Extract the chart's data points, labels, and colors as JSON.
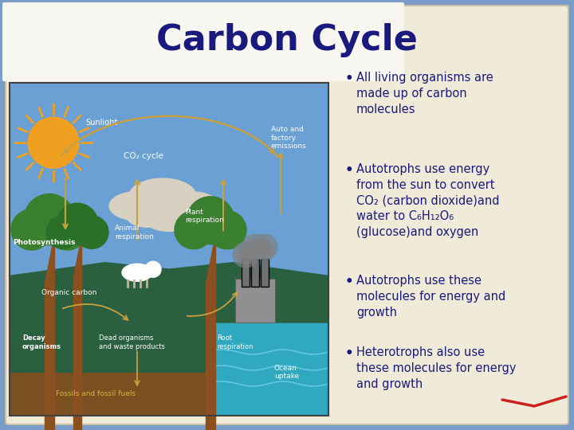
{
  "title": "Carbon Cycle",
  "title_color": "#1a1a7e",
  "title_fontsize": 32,
  "bg_color": "#7a9cc8",
  "paper_cream": "#f0ead8",
  "paper_white": "#f8f6f0",
  "bullet_color": "#1a1a7e",
  "bullet_fontsize": 10.5,
  "diagram_sky": "#6aa0d4",
  "diagram_ground": "#2a6040",
  "diagram_soil": "#7a5020",
  "diagram_ocean": "#30a8c0",
  "sun_color": "#f0a020",
  "arrow_color": "#c8a040",
  "cloud_color": "#d8d0c0",
  "tree_green": "#3a8030",
  "tree_trunk": "#8B5020",
  "label_color": "#f0f0f0",
  "label_dark": "#d0c080",
  "bullet_texts": [
    "All living organisms are\nmade up of carbon\nmolecules",
    "Autotrophs use energy\nfrom the sun to convert\nCO₂ (carbon dioxide)and\nwater to C₆H₁₂O₆\n(glucose)and oxygen",
    "Autotrophs use these\nmolecules for energy and\ngrowth",
    "Heterotrophs also use\nthese molecules for energy\nand growth"
  ]
}
